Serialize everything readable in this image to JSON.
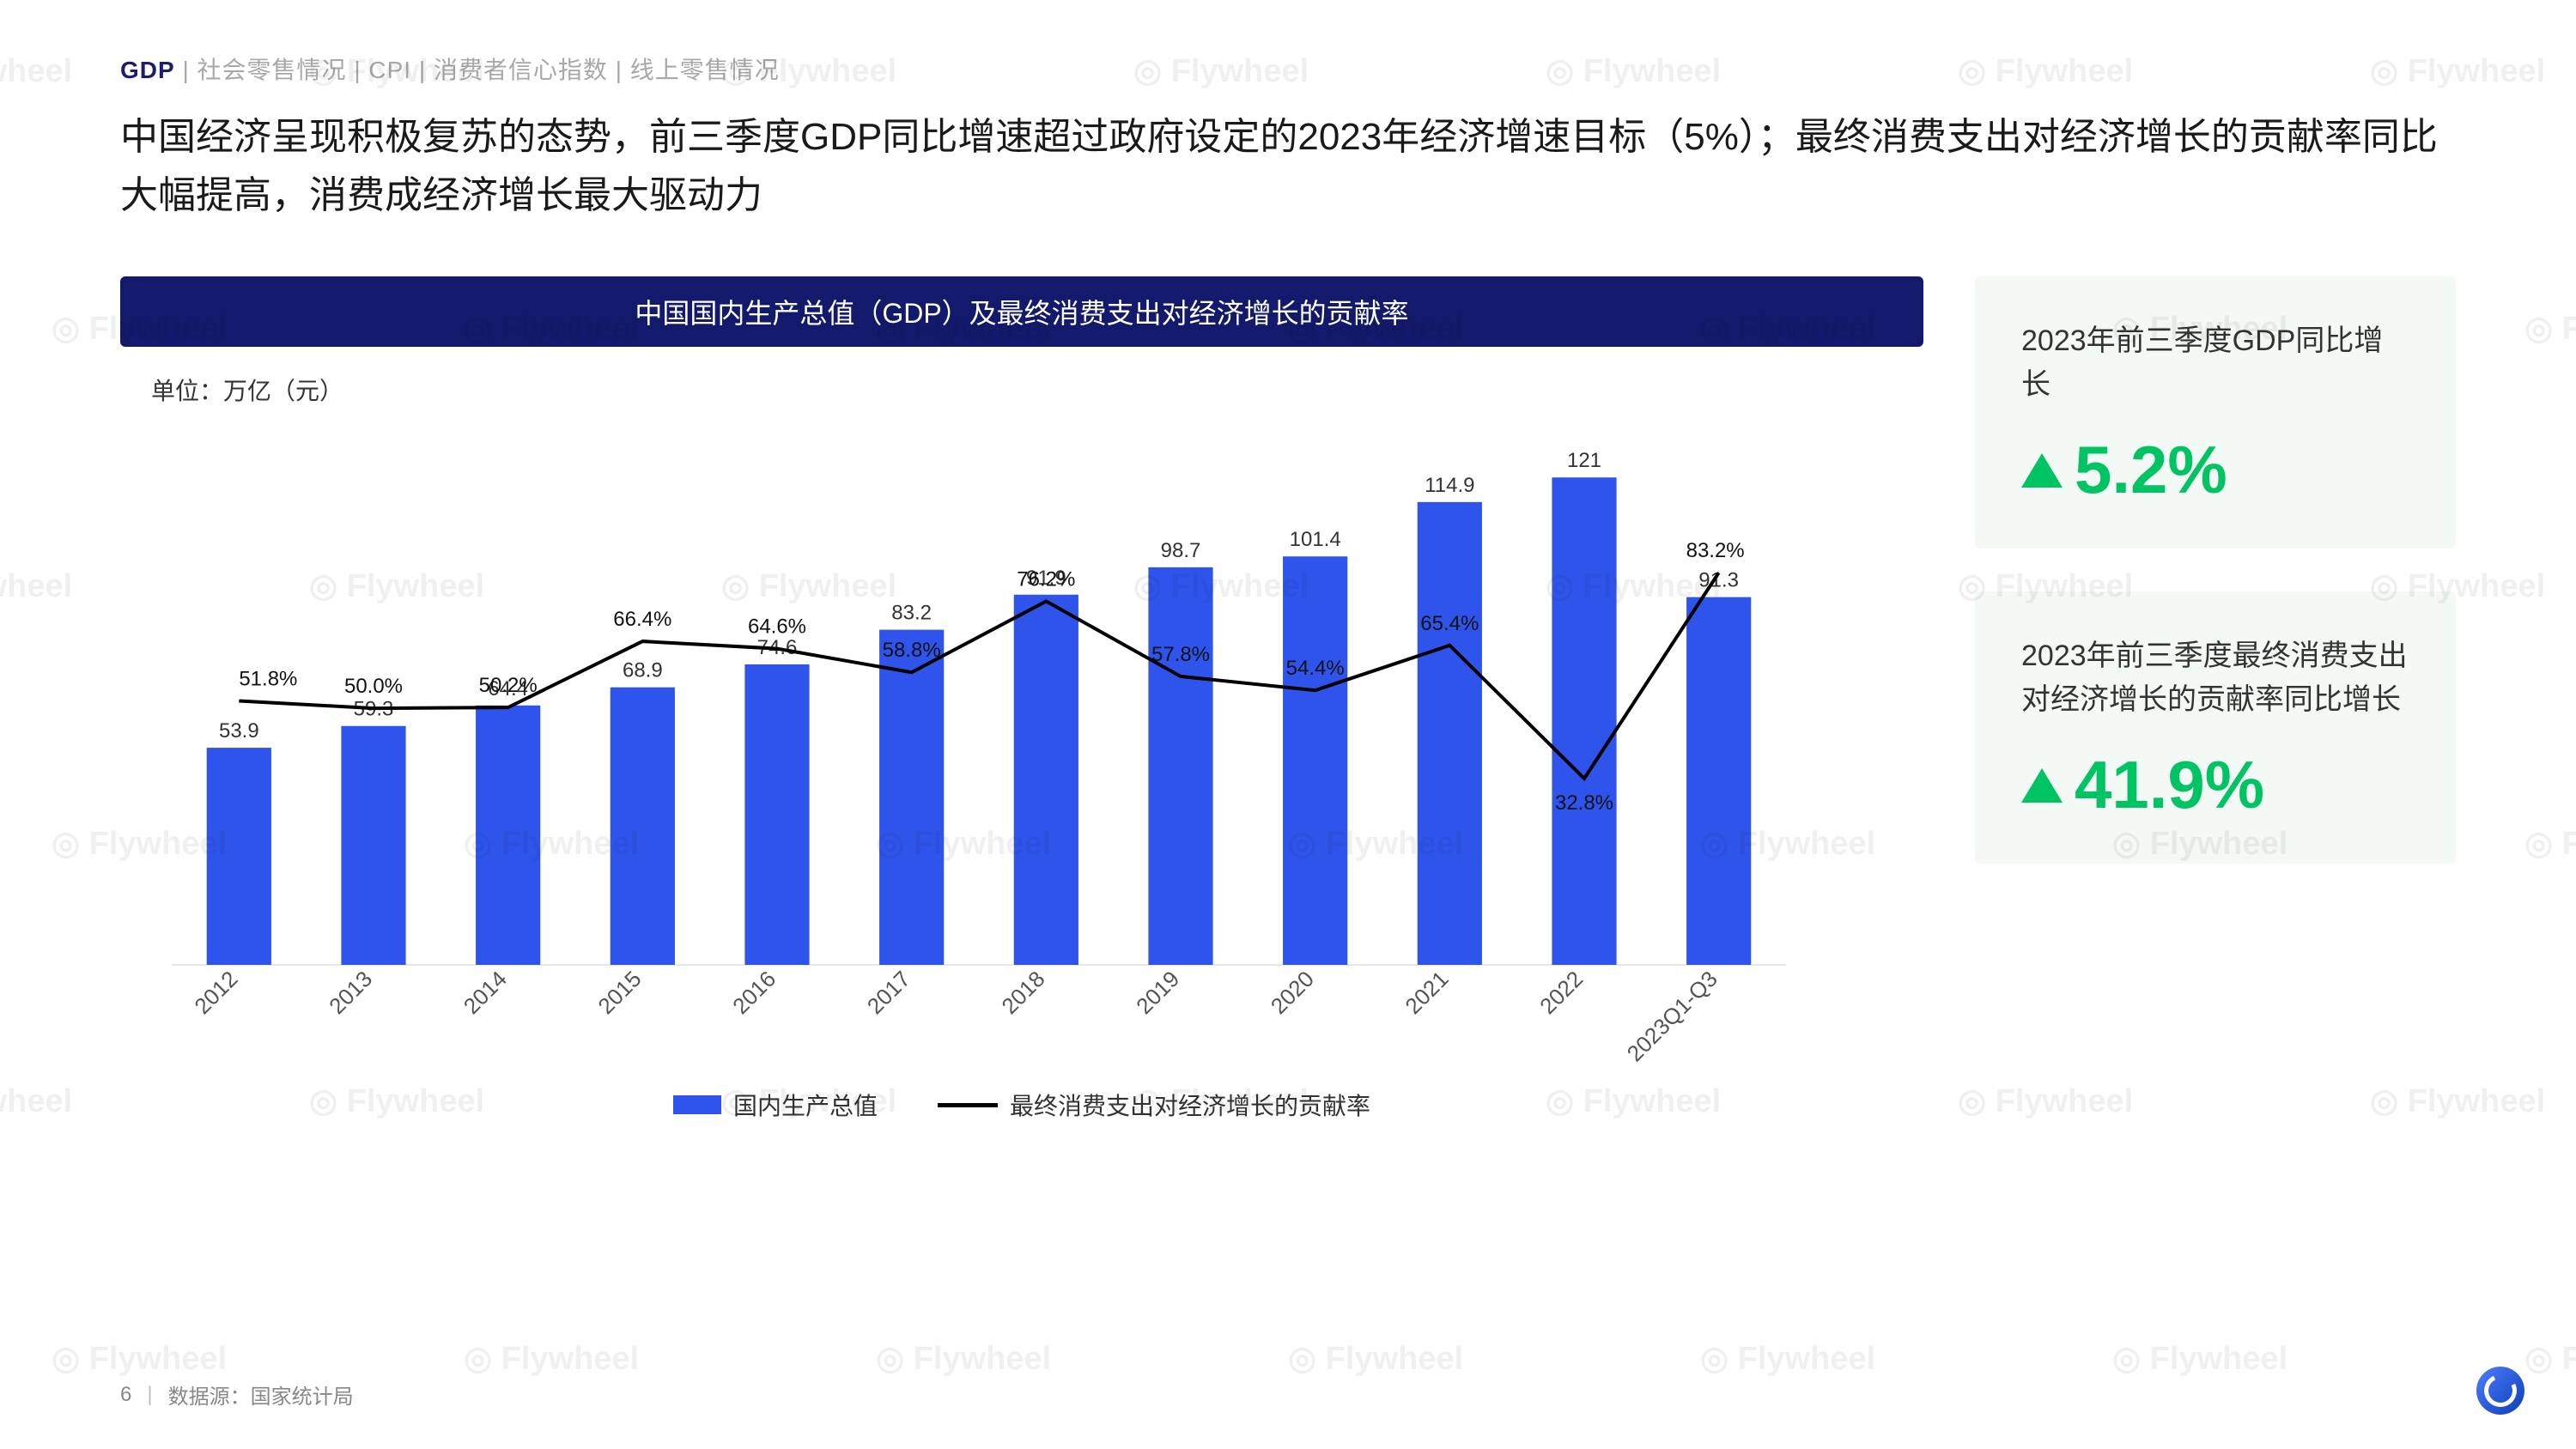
{
  "breadcrumb": {
    "items": [
      "GDP",
      "社会零售情况",
      "CPI",
      "消费者信心指数",
      "线上零售情况"
    ],
    "active_index": 0,
    "separator": " | "
  },
  "headline": "中国经济呈现积极复苏的态势，前三季度GDP同比增速超过政府设定的2023年经济增速目标（5%）；最终消费支出对经济增长的贡献率同比大幅提高，消费成经济增长最大驱动力",
  "chart": {
    "type": "bar+line",
    "title": "中国国内生产总值（GDP）及最终消费支出对经济增长的贡献率",
    "unit_label": "单位：万亿（元）",
    "categories": [
      "2012",
      "2013",
      "2014",
      "2015",
      "2016",
      "2017",
      "2018",
      "2019",
      "2020",
      "2021",
      "2022",
      "2023Q1-Q3"
    ],
    "bar_values": [
      53.9,
      59.3,
      64.4,
      68.9,
      74.6,
      83.2,
      91.9,
      98.7,
      101.4,
      114.9,
      121,
      91.3
    ],
    "bar_color": "#2f54eb",
    "bar_width": 0.48,
    "y_max": 130,
    "line_values_pct": [
      51.8,
      50.0,
      50.2,
      66.4,
      64.6,
      58.8,
      76.2,
      57.8,
      54.4,
      65.4,
      32.8,
      83.2
    ],
    "line_color": "#000000",
    "line_width": 4,
    "line_y_max": 100,
    "label_fontsize": 24,
    "axis_fontsize": 26,
    "axis_color": "#555555",
    "legend": {
      "bar_label": "国内生产总值",
      "line_label": "最终消费支出对经济增长的贡献率"
    }
  },
  "kpis": [
    {
      "desc": "2023年前三季度GDP同比增长",
      "value": "5.2%",
      "color": "#00c464",
      "bg": "#f3faf5"
    },
    {
      "desc": "2023年前三季度最终消费支出对经济增长的贡献率同比增长",
      "value": "41.9%",
      "color": "#00c464",
      "bg": "#f3faf5"
    }
  ],
  "footer": {
    "page_number": "6",
    "separator": "|",
    "source_text": "数据源：国家统计局"
  },
  "watermark": "Flywheel"
}
